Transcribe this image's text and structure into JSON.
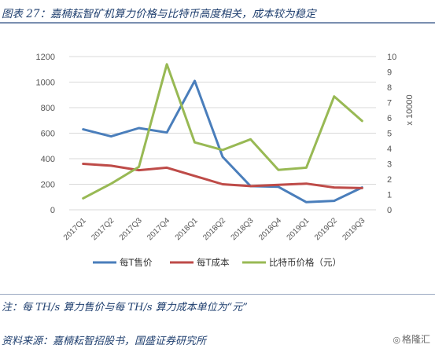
{
  "figure": {
    "title": "图表 27：嘉楠耘智矿机算力价格与比特币高度相关，成本较为稳定",
    "note": "注：每 TH/s 算力售价与每 TH/s 算力成本单位为“元”",
    "source": "资料来源：嘉楠耘智招股书，国盛证券研究所",
    "watermark": "格隆汇"
  },
  "chart_data": {
    "type": "line",
    "categories": [
      "2017Q1",
      "2017Q2",
      "2017Q3",
      "2017Q4",
      "2018Q1",
      "2018Q2",
      "2018Q3",
      "2018Q4",
      "2019Q1",
      "2019Q2",
      "2019Q3"
    ],
    "y_left": {
      "ticks": [
        "0",
        "200",
        "400",
        "600",
        "800",
        "1000",
        "1200"
      ],
      "ylim": [
        0,
        1200
      ]
    },
    "y_right": {
      "ticks": [
        "0",
        "1",
        "2",
        "3",
        "4",
        "5",
        "6",
        "7",
        "8",
        "9",
        "10"
      ],
      "ylim": [
        0,
        10
      ],
      "label": "x 10000"
    },
    "grid": true,
    "legend_position": "bottom",
    "series": [
      {
        "name": "每T售价",
        "axis": "left",
        "color": "#4a7ebb",
        "values": [
          630,
          575,
          640,
          605,
          1010,
          415,
          185,
          180,
          60,
          70,
          175
        ]
      },
      {
        "name": "每T成本",
        "axis": "left",
        "color": "#be4b48",
        "values": [
          360,
          345,
          310,
          330,
          265,
          200,
          185,
          195,
          205,
          175,
          170
        ]
      },
      {
        "name": "比特币价格（元）",
        "axis": "right",
        "color": "#98b954",
        "values": [
          0.75,
          1.7,
          2.8,
          9.5,
          4.4,
          3.9,
          4.6,
          2.6,
          2.75,
          7.4,
          5.8
        ]
      }
    ]
  }
}
